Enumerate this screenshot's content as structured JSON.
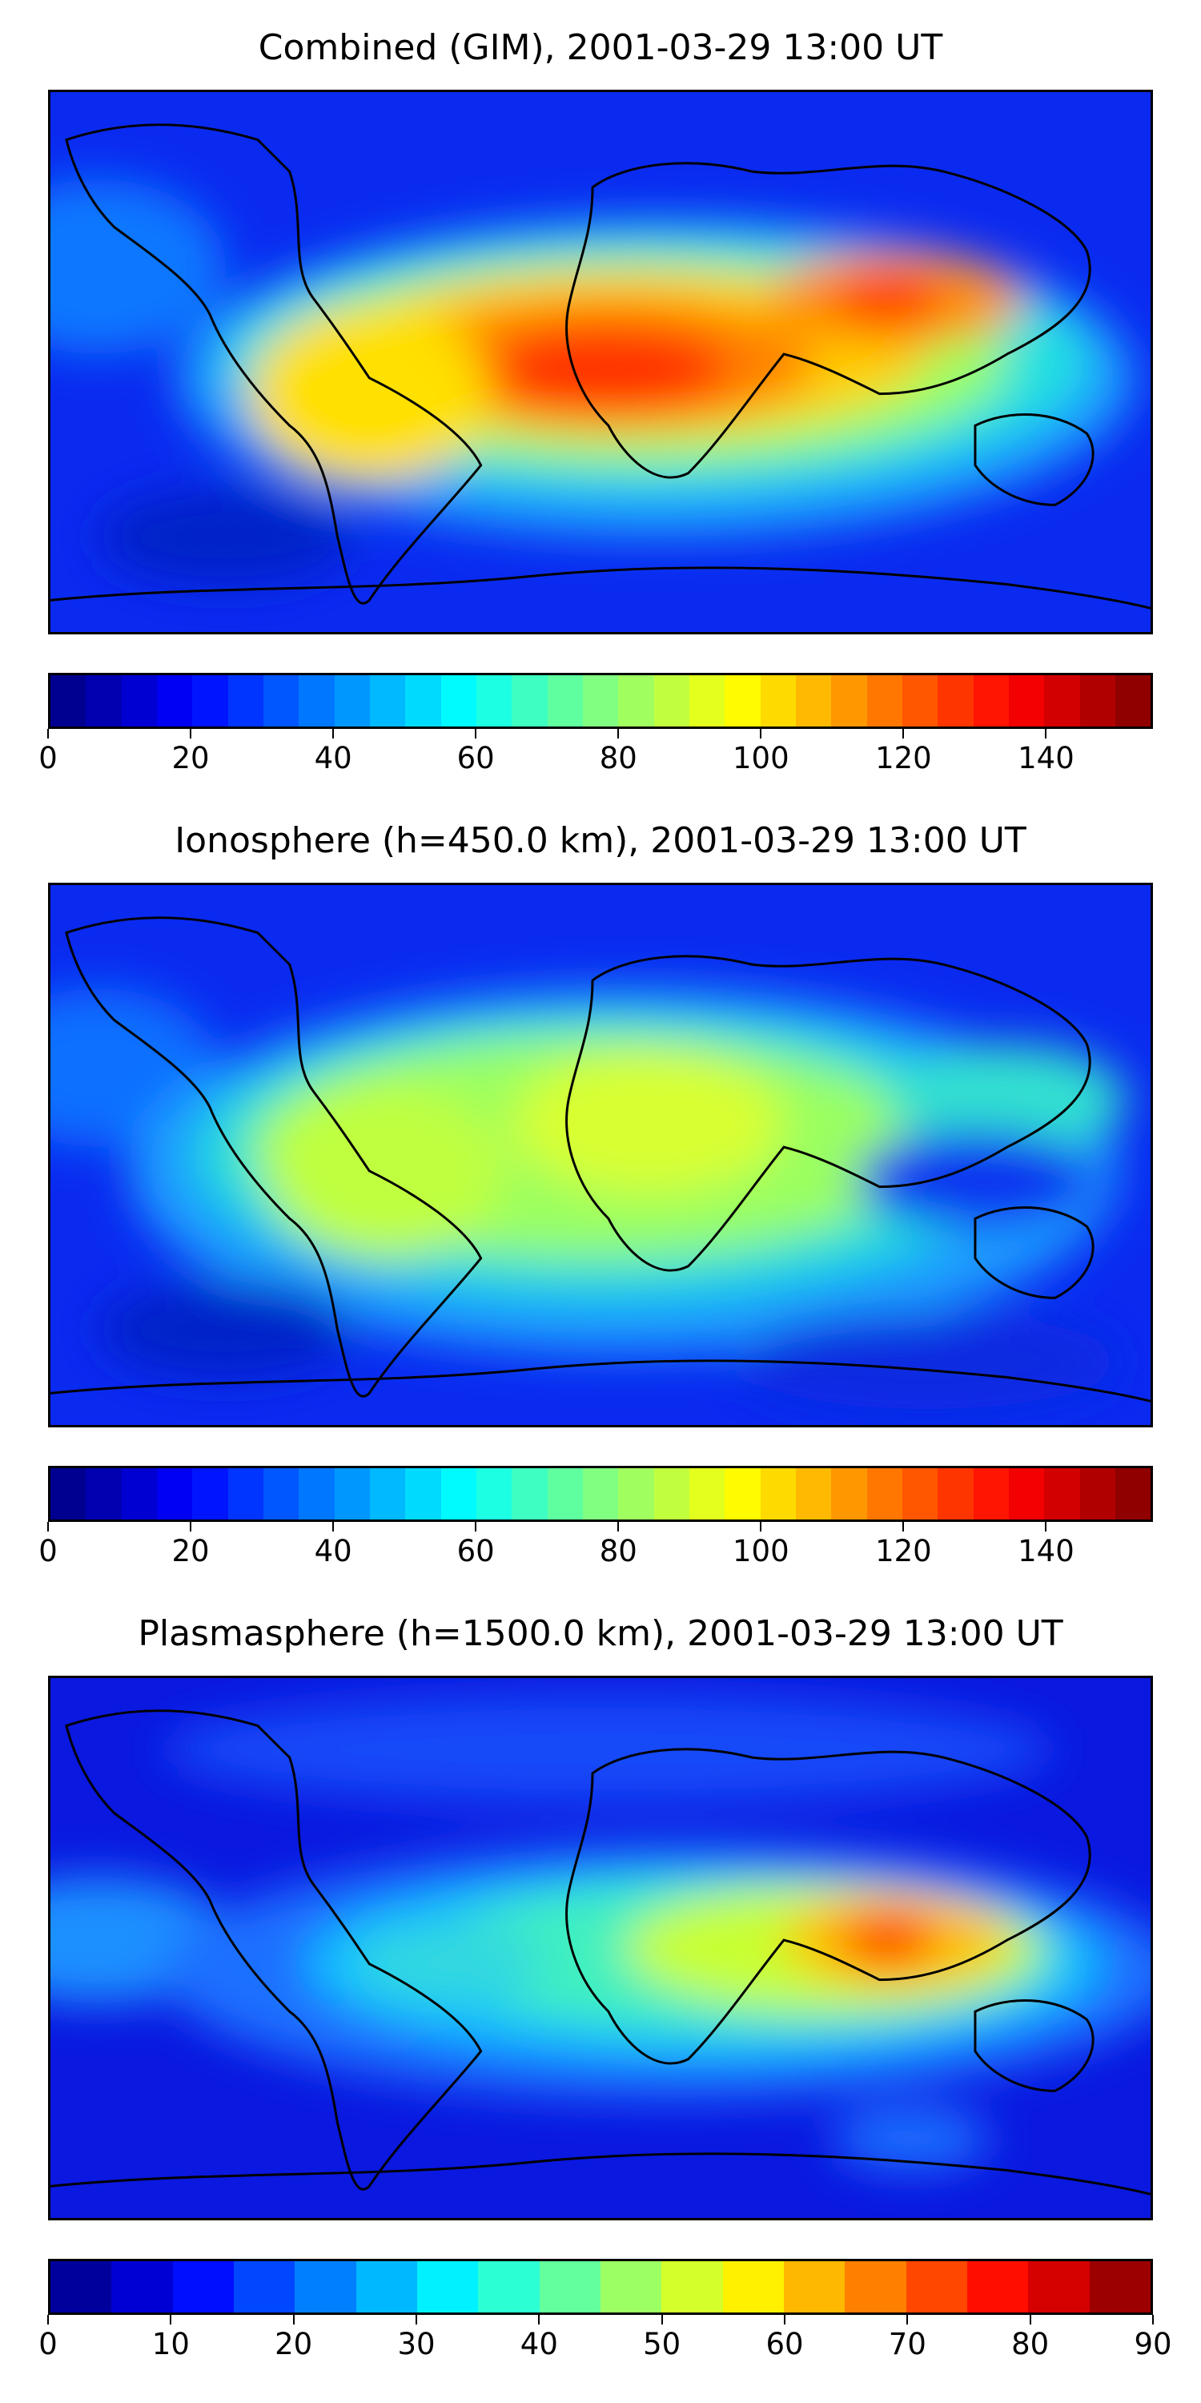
{
  "panels": [
    {
      "title": "Combined (GIM), 2001-03-29 13:00 UT",
      "field": "combined",
      "colorbar": {
        "min": 0,
        "max": 155,
        "levels": 31,
        "ticks": [
          "0",
          "20",
          "40",
          "60",
          "80",
          "100",
          "120",
          "140"
        ],
        "tick_values": [
          0,
          20,
          40,
          60,
          80,
          100,
          120,
          140
        ]
      }
    },
    {
      "title": "Ionosphere  (h=450.0 km), 2001-03-29 13:00 UT",
      "field": "ionosphere",
      "colorbar": {
        "min": 0,
        "max": 155,
        "levels": 31,
        "ticks": [
          "0",
          "20",
          "40",
          "60",
          "80",
          "100",
          "120",
          "140"
        ],
        "tick_values": [
          0,
          20,
          40,
          60,
          80,
          100,
          120,
          140
        ]
      }
    },
    {
      "title": "Plasmasphere (h=1500.0 km), 2001-03-29 13:00 UT",
      "field": "plasmasphere",
      "colorbar": {
        "min": 0,
        "max": 90,
        "levels": 18,
        "ticks": [
          "0",
          "10",
          "20",
          "30",
          "40",
          "50",
          "60",
          "70",
          "80",
          "90"
        ],
        "tick_values": [
          0,
          10,
          20,
          30,
          40,
          50,
          60,
          70,
          80,
          90
        ]
      }
    }
  ],
  "colormap": "jet",
  "background_color": "#0a1ee6",
  "coastline_color": "#000000"
}
